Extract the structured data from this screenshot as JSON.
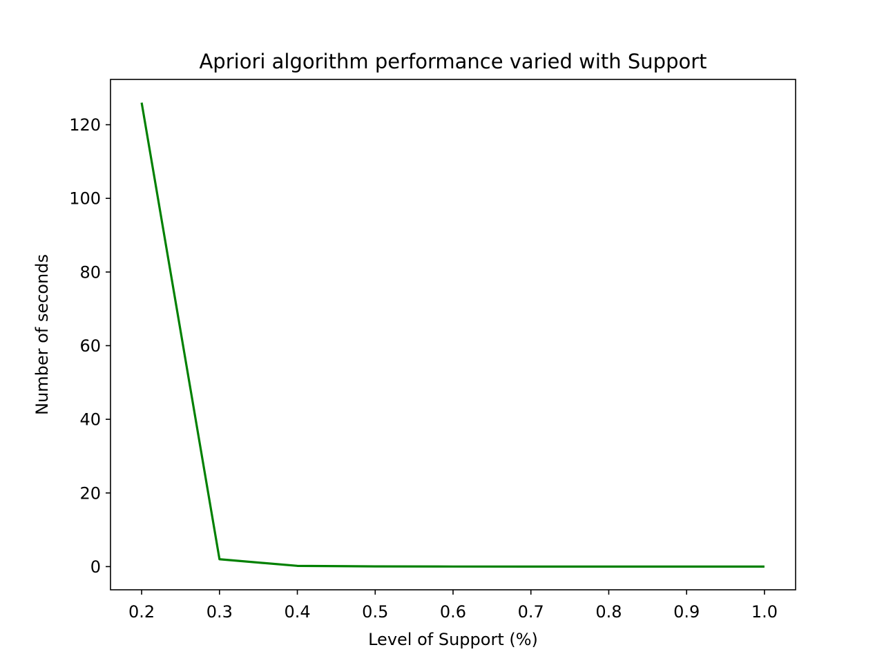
{
  "chart_data": {
    "type": "line",
    "title": "Apriori algorithm performance varied with Support",
    "xlabel": "Level of Support (%)",
    "ylabel": "Number of seconds",
    "xlim": [
      0.16,
      1.04
    ],
    "ylim": [
      -6.3,
      132.3
    ],
    "xticks": [
      "0.2",
      "0.3",
      "0.4",
      "0.5",
      "0.6",
      "0.7",
      "0.8",
      "0.9",
      "1.0"
    ],
    "yticks": [
      "0",
      "20",
      "40",
      "60",
      "80",
      "100",
      "120"
    ],
    "grid": false,
    "legend": "none",
    "series": [
      {
        "color": "#008000",
        "x": [
          0.2,
          0.3,
          0.4,
          0.5,
          0.6,
          0.7,
          0.8,
          0.9,
          1.0
        ],
        "y": [
          126.0,
          2.0,
          0.2,
          0.05,
          0.02,
          0.01,
          0.01,
          0.01,
          0.01
        ]
      }
    ]
  }
}
